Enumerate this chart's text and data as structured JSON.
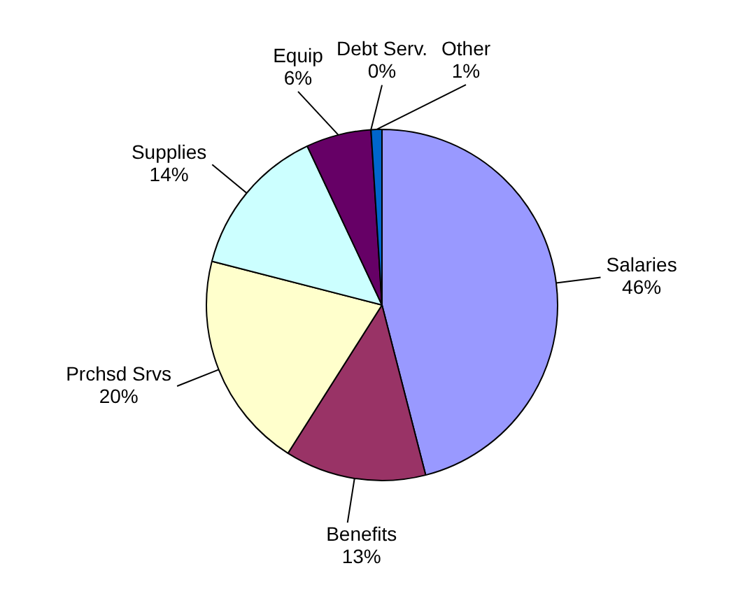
{
  "chart_data": {
    "type": "pie",
    "categories": [
      "Salaries",
      "Benefits",
      "Prchsd Srvs",
      "Supplies",
      "Equip",
      "Debt Serv.",
      "Other"
    ],
    "values": [
      46,
      13,
      20,
      14,
      6,
      0,
      1
    ],
    "value_labels": [
      "46%",
      "13%",
      "20%",
      "14%",
      "6%",
      "0%",
      "1%"
    ],
    "colors": [
      "#9999ff",
      "#993366",
      "#ffffcc",
      "#ccffff",
      "#660066",
      "#ff8080",
      "#0066cc"
    ],
    "legend": false
  }
}
